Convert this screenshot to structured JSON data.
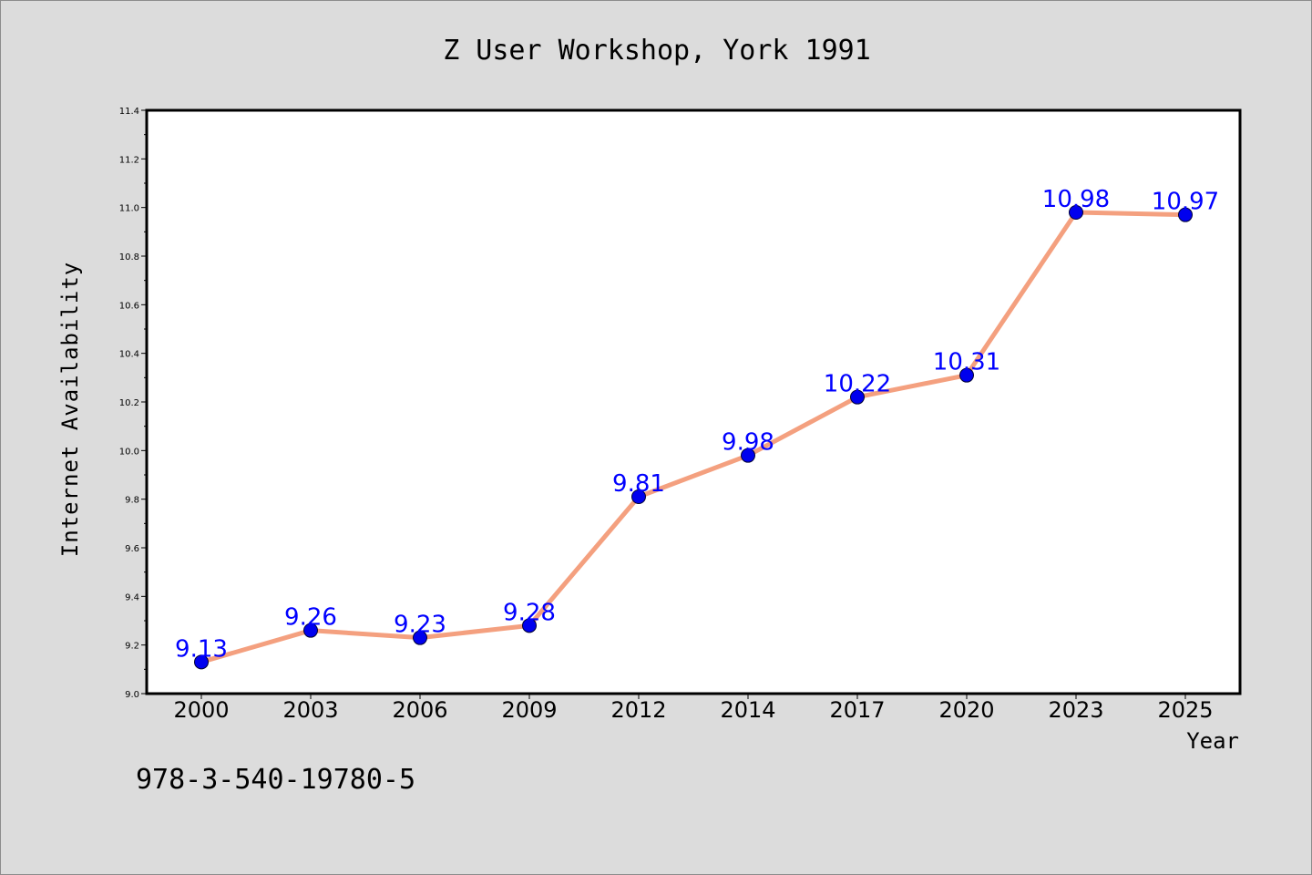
{
  "chart_data": {
    "type": "line",
    "title": "Z User Workshop, York 1991",
    "xlabel": "Year",
    "ylabel": "Internet Availability",
    "categories": [
      "2000",
      "2003",
      "2006",
      "2009",
      "2012",
      "2014",
      "2017",
      "2020",
      "2023",
      "2025"
    ],
    "series": [
      {
        "values": [
          9.13,
          9.26,
          9.23,
          9.28,
          9.81,
          9.98,
          10.22,
          10.31,
          10.98,
          10.97
        ],
        "labels": [
          "9.13",
          "9.26",
          "9.23",
          "9.28",
          "9.81",
          "9.98",
          "10.22",
          "10.31",
          "10.98",
          "10.97"
        ],
        "line_color": "#f4a07f",
        "marker_color": "#0000ee",
        "label_color": "#0000ff"
      }
    ],
    "ylim": [
      9.0,
      11.4
    ],
    "yticks": [
      "9.0",
      "9.2",
      "9.4",
      "9.6",
      "9.8",
      "10.0",
      "10.2",
      "10.4",
      "10.6",
      "10.8",
      "11.0",
      "11.2",
      "11.4"
    ],
    "grid": false,
    "legend": "none"
  },
  "footnote": "978-3-540-19780-5",
  "colors": {
    "background": "#dcdcdc",
    "plot_background": "#ffffff"
  }
}
